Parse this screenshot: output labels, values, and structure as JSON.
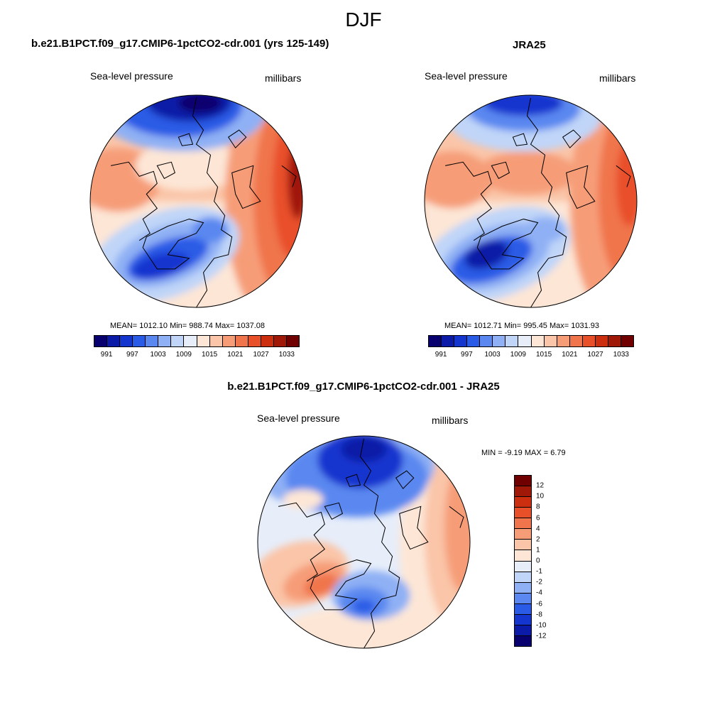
{
  "figure": {
    "title": "DJF"
  },
  "panels": {
    "model": {
      "title": "b.e21.B1PCT.f09_g17.CMIP6-1pctCO2-cdr.001 (yrs 125-149)",
      "left_label": "Sea-level pressure",
      "right_label": "millibars",
      "stats": "MEAN= 1012.10  Min= 988.74  Max= 1037.08"
    },
    "obs": {
      "title": "JRA25",
      "left_label": "Sea-level pressure",
      "right_label": "millibars",
      "stats": "MEAN= 1012.71  Min= 995.45  Max= 1031.93"
    },
    "diff": {
      "title": "b.e21.B1PCT.f09_g17.CMIP6-1pctCO2-cdr.001 - JRA25",
      "left_label": "Sea-level pressure",
      "right_label": "millibars",
      "stats": "MIN =  -9.19 MAX =   6.79"
    }
  },
  "colorbars": {
    "slp": {
      "colors": [
        "#08006e",
        "#0b1ba7",
        "#1436cf",
        "#2a5be6",
        "#5a88f0",
        "#8fb0f4",
        "#c0d5f8",
        "#e7eefa",
        "#fde6d6",
        "#fac5a8",
        "#f69d78",
        "#f0754c",
        "#e8502a",
        "#cc2f10",
        "#a01808",
        "#700000"
      ],
      "labels": [
        "991",
        "997",
        "1003",
        "1009",
        "1015",
        "1021",
        "1027",
        "1033"
      ]
    },
    "diff": {
      "colors": [
        "#700000",
        "#a01808",
        "#cc2f10",
        "#e8502a",
        "#f0754c",
        "#f69d78",
        "#fac5a8",
        "#fde6d6",
        "#e7eefa",
        "#c0d5f8",
        "#8fb0f4",
        "#5a88f0",
        "#2a5be6",
        "#1436cf",
        "#0b1ba7",
        "#08006e"
      ],
      "labels": [
        "12",
        "10",
        "8",
        "6",
        "4",
        "2",
        "1",
        "0",
        "-1",
        "-2",
        "-4",
        "-6",
        "-8",
        "-10",
        "-12"
      ]
    }
  }
}
